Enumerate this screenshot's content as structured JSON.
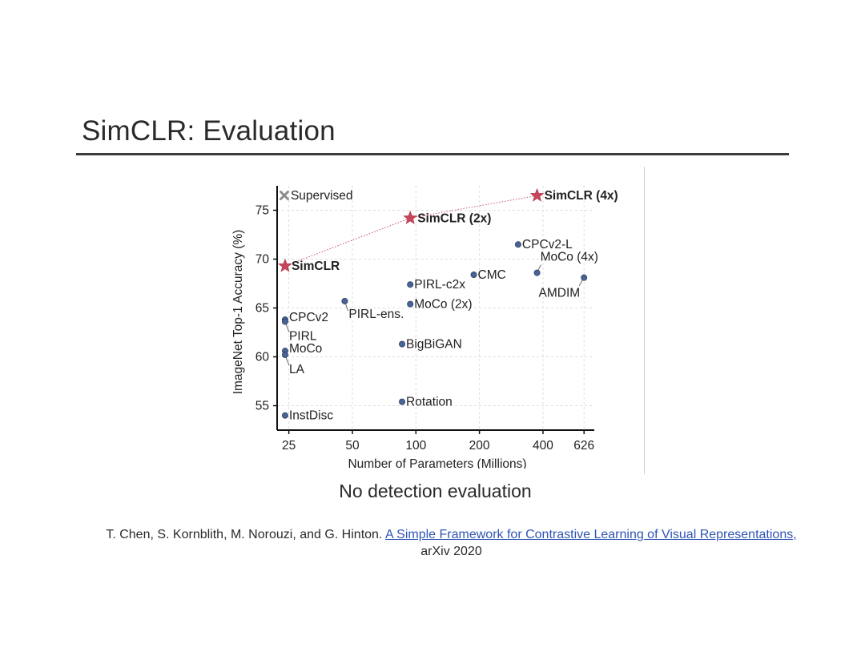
{
  "slide": {
    "title": "SimCLR: Evaluation",
    "subtitle": "No detection evaluation",
    "citation": {
      "authors": "T. Chen, S. Kornblith, M. Norouzi, and G. Hinton.",
      "link_text": "A Simple Framework for Contrastive Learning of Visual Representations,",
      "venue": "arXiv 2020"
    }
  },
  "chart_data": {
    "type": "scatter",
    "xlabel": "Number of Parameters (Millions)",
    "ylabel": "ImageNet Top-1 Accuracy (%)",
    "x_scale": "log",
    "xlim": [
      22,
      700
    ],
    "ylim": [
      52.5,
      77.5
    ],
    "xticks": [
      25,
      50,
      100,
      200,
      400,
      626
    ],
    "yticks": [
      55,
      60,
      65,
      70,
      75
    ],
    "grid": true,
    "legend": {
      "label": "Supervised",
      "placement": "top-left"
    },
    "colors": {
      "point": "#4a6396",
      "simclr": "#c9455a",
      "supervised": "#8c8c8c",
      "connector": "#c95567"
    },
    "points": [
      {
        "label": "SimCLR",
        "x": 24,
        "y": 69.3,
        "marker": "star",
        "bold": true
      },
      {
        "label": "SimCLR (2x)",
        "x": 94,
        "y": 74.2,
        "marker": "star",
        "bold": true
      },
      {
        "label": "SimCLR (4x)",
        "x": 375,
        "y": 76.5,
        "marker": "star",
        "bold": true
      },
      {
        "label": "CPCv2-L",
        "x": 305,
        "y": 71.5,
        "marker": "dot"
      },
      {
        "label": "MoCo (4x)",
        "x": 375,
        "y": 68.6,
        "marker": "dot"
      },
      {
        "label": "AMDIM",
        "x": 626,
        "y": 68.1,
        "marker": "dot"
      },
      {
        "label": "CMC",
        "x": 188,
        "y": 68.4,
        "marker": "dot"
      },
      {
        "label": "PIRL-c2x",
        "x": 94,
        "y": 67.4,
        "marker": "dot"
      },
      {
        "label": "MoCo (2x)",
        "x": 94,
        "y": 65.4,
        "marker": "dot"
      },
      {
        "label": "PIRL-ens.",
        "x": 46,
        "y": 65.7,
        "marker": "dot"
      },
      {
        "label": "CPCv2",
        "x": 24,
        "y": 63.8,
        "marker": "dot"
      },
      {
        "label": "PIRL",
        "x": 24,
        "y": 63.6,
        "marker": "dot"
      },
      {
        "label": "MoCo",
        "x": 24,
        "y": 60.6,
        "marker": "dot"
      },
      {
        "label": "LA",
        "x": 24,
        "y": 60.2,
        "marker": "dot"
      },
      {
        "label": "BigBiGAN",
        "x": 86,
        "y": 61.3,
        "marker": "dot"
      },
      {
        "label": "Rotation",
        "x": 86,
        "y": 55.4,
        "marker": "dot"
      },
      {
        "label": "InstDisc",
        "x": 24,
        "y": 54.0,
        "marker": "dot"
      }
    ]
  }
}
